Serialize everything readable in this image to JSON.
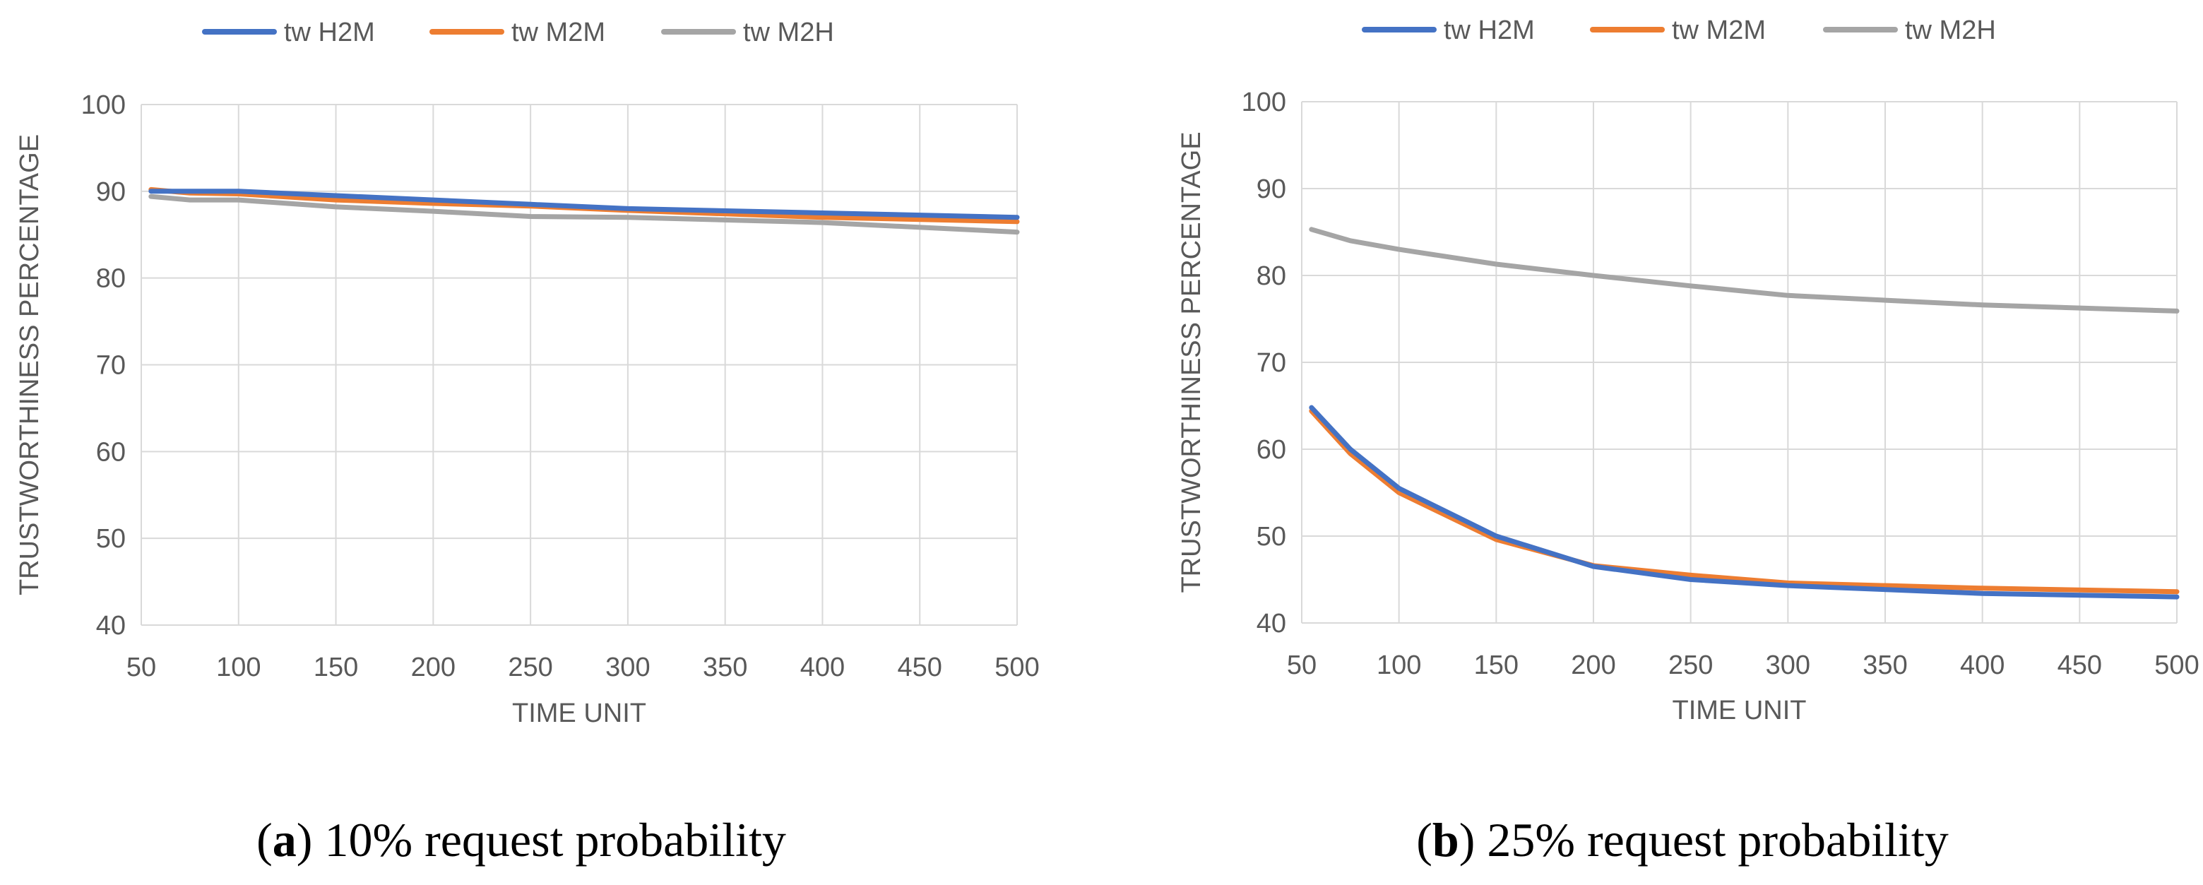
{
  "chart_data": [
    {
      "type": "line",
      "caption_label": "a",
      "caption_text": "10% request probability",
      "xlabel": "TIME UNIT",
      "ylabel": "TRUSTWORTHINESS PERCENTAGE",
      "xlim": [
        50,
        500
      ],
      "ylim": [
        40,
        100
      ],
      "xticks": [
        50,
        100,
        150,
        200,
        250,
        300,
        350,
        400,
        450,
        500
      ],
      "yticks": [
        40,
        50,
        60,
        70,
        80,
        90,
        100
      ],
      "grid": true,
      "legend_position": "top",
      "x": [
        55,
        75,
        100,
        150,
        200,
        250,
        300,
        400,
        500
      ],
      "series": [
        {
          "name": "tw H2M",
          "color": "#4472C4",
          "values": [
            90.0,
            90.0,
            90.0,
            89.5,
            89.0,
            88.5,
            88.0,
            87.5,
            87.0
          ]
        },
        {
          "name": "tw M2M",
          "color": "#ED7D31",
          "values": [
            90.2,
            89.8,
            89.7,
            89.0,
            88.6,
            88.3,
            87.8,
            87.0,
            86.5
          ]
        },
        {
          "name": "tw M2H",
          "color": "#A5A5A5",
          "values": [
            89.4,
            89.0,
            89.0,
            88.2,
            87.7,
            87.1,
            87.0,
            86.4,
            85.3
          ]
        }
      ]
    },
    {
      "type": "line",
      "caption_label": "b",
      "caption_text": "25% request probability",
      "xlabel": "TIME UNIT",
      "ylabel": "TRUSTWORTHINESS PERCENTAGE",
      "xlim": [
        50,
        500
      ],
      "ylim": [
        40,
        100
      ],
      "xticks": [
        50,
        100,
        150,
        200,
        250,
        300,
        350,
        400,
        450,
        500
      ],
      "yticks": [
        40,
        50,
        60,
        70,
        80,
        90,
        100
      ],
      "grid": true,
      "legend_position": "top",
      "x": [
        55,
        75,
        100,
        150,
        200,
        250,
        300,
        400,
        500
      ],
      "series": [
        {
          "name": "tw H2M",
          "color": "#4472C4",
          "values": [
            64.8,
            60.0,
            55.5,
            50.0,
            46.5,
            45.0,
            44.3,
            43.4,
            43.0
          ]
        },
        {
          "name": "tw M2M",
          "color": "#ED7D31",
          "values": [
            64.4,
            59.5,
            55.0,
            49.6,
            46.6,
            45.5,
            44.6,
            44.0,
            43.6
          ]
        },
        {
          "name": "tw M2H",
          "color": "#A5A5A5",
          "values": [
            85.3,
            84.0,
            83.0,
            81.3,
            80.0,
            78.8,
            77.7,
            76.6,
            75.9
          ]
        }
      ]
    }
  ]
}
